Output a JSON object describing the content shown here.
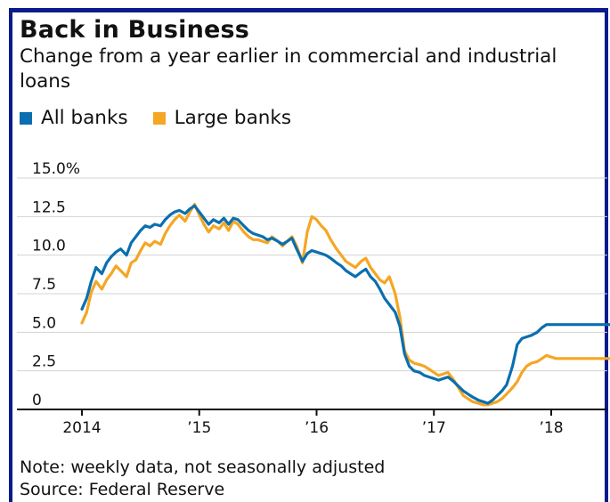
{
  "header": {
    "title": "Back in Business",
    "subtitle": "Change from a year earlier in commercial and industrial loans"
  },
  "legend": [
    {
      "label": "All banks",
      "color": "#0a6fb0"
    },
    {
      "label": "Large banks",
      "color": "#f5a623"
    }
  ],
  "footer": {
    "note": "Note: weekly data, not seasonally adjusted",
    "source": "Source: Federal Reserve"
  },
  "colors": {
    "frame": "#0b1a8c",
    "grid": "#d3d3d3",
    "axis": "#111111"
  },
  "chart_data": {
    "type": "line",
    "title": "Back in Business",
    "xlabel": "",
    "ylabel": "",
    "xlim": [
      2014.0,
      2018.5
    ],
    "ylim": [
      0,
      15
    ],
    "yticks": [
      {
        "value": 0,
        "label": "0"
      },
      {
        "value": 2.5,
        "label": "2.5"
      },
      {
        "value": 5,
        "label": "5.0"
      },
      {
        "value": 7.5,
        "label": "7.5"
      },
      {
        "value": 10,
        "label": "10.0"
      },
      {
        "value": 12.5,
        "label": "12.5"
      },
      {
        "value": 15,
        "label": "15.0%"
      }
    ],
    "xticks": [
      {
        "value": 2014,
        "label": "2014"
      },
      {
        "value": 2015,
        "label": "’15"
      },
      {
        "value": 2016,
        "label": "’16"
      },
      {
        "value": 2017,
        "label": "’17"
      },
      {
        "value": 2018,
        "label": "’18"
      }
    ],
    "grid": true,
    "legend_position": "top-left",
    "series": [
      {
        "name": "All banks",
        "color": "#0a6fb0",
        "x": [
          2014.0,
          2014.04,
          2014.08,
          2014.12,
          2014.17,
          2014.21,
          2014.25,
          2014.29,
          2014.33,
          2014.38,
          2014.42,
          2014.46,
          2014.5,
          2014.54,
          2014.58,
          2014.62,
          2014.67,
          2014.71,
          2014.75,
          2014.79,
          2014.83,
          2014.88,
          2014.92,
          2014.96,
          2015.0,
          2015.04,
          2015.08,
          2015.12,
          2015.17,
          2015.21,
          2015.25,
          2015.29,
          2015.33,
          2015.38,
          2015.42,
          2015.46,
          2015.5,
          2015.54,
          2015.58,
          2015.62,
          2015.67,
          2015.71,
          2015.75,
          2015.79,
          2015.83,
          2015.88,
          2015.92,
          2015.96,
          2016.0,
          2016.04,
          2016.08,
          2016.12,
          2016.17,
          2016.21,
          2016.25,
          2016.29,
          2016.33,
          2016.38,
          2016.42,
          2016.46,
          2016.5,
          2016.54,
          2016.58,
          2016.62,
          2016.67,
          2016.71,
          2016.75,
          2016.79,
          2016.83,
          2016.88,
          2016.92,
          2016.96,
          2017.0,
          2017.04,
          2017.08,
          2017.12,
          2017.17,
          2017.21,
          2017.25,
          2017.29,
          2017.33,
          2017.38,
          2017.42,
          2017.46,
          2017.5,
          2017.54,
          2017.58,
          2017.62,
          2017.67,
          2017.71,
          2017.75,
          2017.79,
          2017.83,
          2017.88,
          2017.92,
          2017.96,
          2018.0,
          2018.04,
          2018.08,
          2018.12,
          2018.17,
          2018.21,
          2018.25,
          2018.29,
          2018.33,
          2018.38,
          2018.42,
          2018.46,
          2018.5
        ],
        "values": [
          6.5,
          7.2,
          8.3,
          9.2,
          8.8,
          9.5,
          9.9,
          10.2,
          10.4,
          10.0,
          10.8,
          11.2,
          11.6,
          11.9,
          11.8,
          12.0,
          11.9,
          12.3,
          12.6,
          12.8,
          12.9,
          12.7,
          13.0,
          13.2,
          12.8,
          12.4,
          12.0,
          12.3,
          12.1,
          12.4,
          12.0,
          12.4,
          12.3,
          11.9,
          11.6,
          11.4,
          11.3,
          11.2,
          11.0,
          11.1,
          10.9,
          10.7,
          10.9,
          11.1,
          10.4,
          9.6,
          10.1,
          10.3,
          10.2,
          10.1,
          10.0,
          9.8,
          9.5,
          9.3,
          9.0,
          8.8,
          8.6,
          8.9,
          9.1,
          8.6,
          8.3,
          7.8,
          7.2,
          6.8,
          6.3,
          5.4,
          3.6,
          2.8,
          2.5,
          2.4,
          2.2,
          2.1,
          2.0,
          1.9,
          2.0,
          2.1,
          1.8,
          1.5,
          1.2,
          1.0,
          0.8,
          0.6,
          0.5,
          0.4,
          0.6,
          0.9,
          1.2,
          1.6,
          2.8,
          4.2,
          4.6,
          4.7,
          4.8,
          5.0,
          5.3,
          5.5,
          5.5,
          5.5,
          5.5,
          5.5,
          5.5,
          5.5,
          5.5,
          5.5,
          5.5,
          5.5,
          5.5,
          5.5,
          5.5
        ]
      },
      {
        "name": "Large banks",
        "color": "#f5a623",
        "x": [
          2014.0,
          2014.04,
          2014.08,
          2014.12,
          2014.17,
          2014.21,
          2014.25,
          2014.29,
          2014.33,
          2014.38,
          2014.42,
          2014.46,
          2014.5,
          2014.54,
          2014.58,
          2014.62,
          2014.67,
          2014.71,
          2014.75,
          2014.79,
          2014.83,
          2014.88,
          2014.92,
          2014.96,
          2015.0,
          2015.04,
          2015.08,
          2015.12,
          2015.17,
          2015.21,
          2015.25,
          2015.29,
          2015.33,
          2015.38,
          2015.42,
          2015.46,
          2015.5,
          2015.54,
          2015.58,
          2015.62,
          2015.67,
          2015.71,
          2015.75,
          2015.79,
          2015.83,
          2015.88,
          2015.92,
          2015.96,
          2016.0,
          2016.04,
          2016.08,
          2016.12,
          2016.17,
          2016.21,
          2016.25,
          2016.29,
          2016.33,
          2016.38,
          2016.42,
          2016.46,
          2016.5,
          2016.54,
          2016.58,
          2016.62,
          2016.67,
          2016.71,
          2016.75,
          2016.79,
          2016.83,
          2016.88,
          2016.92,
          2016.96,
          2017.0,
          2017.04,
          2017.08,
          2017.12,
          2017.17,
          2017.21,
          2017.25,
          2017.29,
          2017.33,
          2017.38,
          2017.42,
          2017.46,
          2017.5,
          2017.54,
          2017.58,
          2017.62,
          2017.67,
          2017.71,
          2017.75,
          2017.79,
          2017.83,
          2017.88,
          2017.92,
          2017.96,
          2018.0,
          2018.04,
          2018.08,
          2018.12,
          2018.17,
          2018.21,
          2018.25,
          2018.29,
          2018.33,
          2018.38,
          2018.42,
          2018.46,
          2018.5
        ],
        "values": [
          5.6,
          6.3,
          7.6,
          8.3,
          7.8,
          8.4,
          8.8,
          9.3,
          9.0,
          8.6,
          9.5,
          9.7,
          10.3,
          10.8,
          10.6,
          10.9,
          10.7,
          11.4,
          11.9,
          12.3,
          12.6,
          12.2,
          12.8,
          13.3,
          12.6,
          12.0,
          11.5,
          11.9,
          11.7,
          12.1,
          11.6,
          12.2,
          12.0,
          11.5,
          11.2,
          11.0,
          11.0,
          10.9,
          10.8,
          11.2,
          10.9,
          10.6,
          10.9,
          11.2,
          10.6,
          9.5,
          11.5,
          12.5,
          12.3,
          11.9,
          11.6,
          11.0,
          10.4,
          10.0,
          9.6,
          9.4,
          9.2,
          9.6,
          9.8,
          9.2,
          8.8,
          8.4,
          8.2,
          8.6,
          7.5,
          6.0,
          3.8,
          3.2,
          3.0,
          2.9,
          2.8,
          2.6,
          2.4,
          2.2,
          2.3,
          2.4,
          1.9,
          1.4,
          0.9,
          0.7,
          0.5,
          0.4,
          0.3,
          0.3,
          0.4,
          0.5,
          0.7,
          1.0,
          1.4,
          1.8,
          2.4,
          2.8,
          3.0,
          3.1,
          3.3,
          3.5,
          3.4,
          3.3,
          3.3,
          3.3,
          3.3,
          3.3,
          3.3,
          3.3,
          3.3,
          3.3,
          3.3,
          3.3,
          3.3
        ]
      }
    ]
  }
}
